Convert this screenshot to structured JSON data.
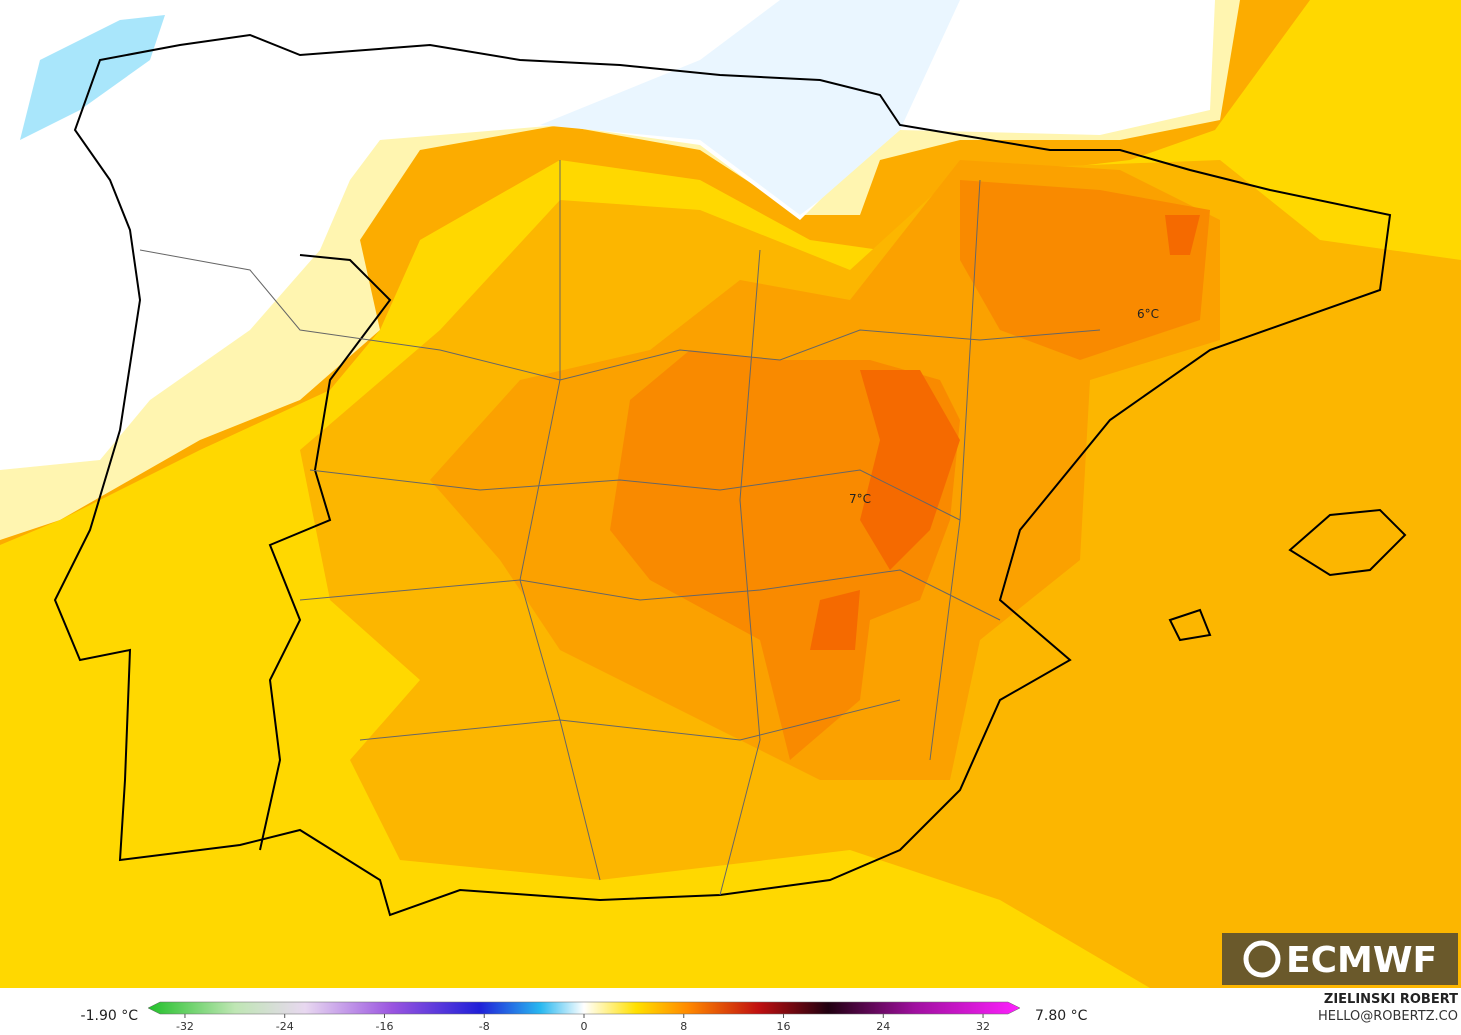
{
  "map": {
    "labels": [
      {
        "text": "6°C"
      },
      {
        "text": "7°C"
      }
    ],
    "logo": "ECMWF"
  },
  "colorbar": {
    "min_label": "-1.90 °C",
    "max_label": "7.80 °C",
    "ticks": [
      -32,
      -24,
      -16,
      -8,
      0,
      8,
      16,
      24,
      32
    ]
  },
  "credits": {
    "author": "ZIELINSKI ROBERT",
    "contact": "HELLO@ROBERTZ.CO"
  }
}
